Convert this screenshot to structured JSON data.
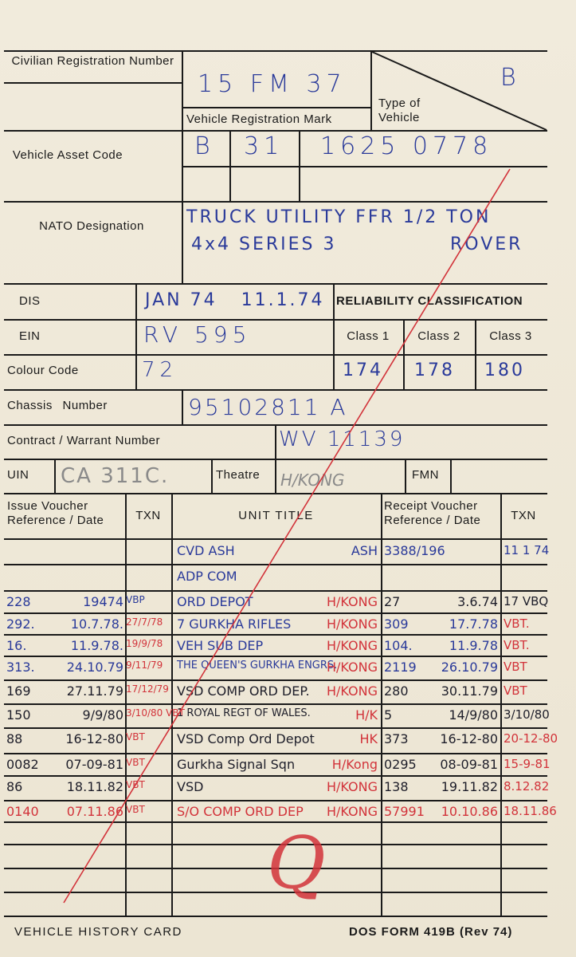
{
  "labels": {
    "civilian_registration_number": "Civilian Registration Number",
    "vehicle_registration_mark": "Vehicle Registration Mark",
    "type_of_vehicle": "Type of Vehicle",
    "vehicle_asset_code": "Vehicle Asset Code",
    "nato_designation": "NATO Designation",
    "dis": "DIS",
    "ein": "EIN",
    "colour_code": "Colour Code",
    "reliability_classification": "RELIABILITY CLASSIFICATION",
    "class_1": "Class 1",
    "class_2": "Class 2",
    "class_3": "Class 3",
    "chassis_number": "Chassis Number",
    "contract_warrant_number": "Contract / Warrant Number",
    "uin": "UIN",
    "theatre": "Theatre",
    "fmn": "FMN",
    "issue_voucher": "Issue Voucher Reference / Date",
    "txn": "TXN",
    "unit_title": "UNIT TITLE",
    "receipt_voucher": "Receipt Voucher Reference / Date",
    "txn_2": "TXN"
  },
  "values": {
    "vehicle_registration_mark": "15 FM 37",
    "type_of_vehicle": "B",
    "asset_code_1": "B",
    "asset_code_2": "31",
    "asset_code_3": "1625 0778",
    "nato_line_1": "TRUCK UTILITY FFR 1/2 TON",
    "nato_line_2": "4x4 SERIES 3",
    "nato_line_2b": "ROVER",
    "dis": "JAN 74   11.1.74",
    "ein": "RV 595",
    "colour_code": "72",
    "class_1": "174",
    "class_2": "178",
    "class_3": "180",
    "chassis_number": "95102811 A",
    "contract_warrant_number": "WV 11139",
    "uin": "CA 311C.",
    "theatre": "H/KONG",
    "fmn": ""
  },
  "history_rows": [
    {
      "iv_ref": {
        "t": "",
        "ink": "blue"
      },
      "iv_date": {
        "t": "",
        "ink": "blue"
      },
      "txn": {
        "t": "",
        "ink": "blue"
      },
      "unit": {
        "t": "CVD ASH",
        "ink": "blue"
      },
      "loc": {
        "t": "ASH",
        "ink": "blue"
      },
      "rv_ref": {
        "t": "3388/196",
        "ink": "blue"
      },
      "rv_date": {
        "t": "",
        "ink": "blue"
      },
      "txn2": {
        "t": "11 1 74",
        "ink": "blue"
      }
    },
    {
      "iv_ref": {
        "t": "",
        "ink": "blue"
      },
      "iv_date": {
        "t": "",
        "ink": "blue"
      },
      "txn": {
        "t": "",
        "ink": "blue"
      },
      "unit": {
        "t": "ADP COM",
        "ink": "blue"
      },
      "loc": {
        "t": "",
        "ink": "blue"
      },
      "rv_ref": {
        "t": "",
        "ink": "blue"
      },
      "rv_date": {
        "t": "",
        "ink": "blue"
      },
      "txn2": {
        "t": "",
        "ink": "blue"
      }
    },
    {
      "iv_ref": {
        "t": "228",
        "ink": "blue"
      },
      "iv_date": {
        "t": "19474",
        "ink": "blue"
      },
      "txn": {
        "t": "VBP",
        "ink": "blue"
      },
      "unit": {
        "t": "ORD DEPOT",
        "ink": "blue"
      },
      "loc": {
        "t": "H/KONG",
        "ink": "red"
      },
      "rv_ref": {
        "t": "27",
        "ink": "black"
      },
      "rv_date": {
        "t": "3.6.74",
        "ink": "black"
      },
      "txn2": {
        "t": "17 VBQ",
        "ink": "black"
      }
    },
    {
      "iv_ref": {
        "t": "292.",
        "ink": "blue"
      },
      "iv_date": {
        "t": "10.7.78.",
        "ink": "blue"
      },
      "txn": {
        "t": "27/7/78",
        "ink": "red"
      },
      "unit": {
        "t": "7 GURKHA RIFLES",
        "ink": "blue"
      },
      "loc": {
        "t": "H/KONG",
        "ink": "red"
      },
      "rv_ref": {
        "t": "309",
        "ink": "blue"
      },
      "rv_date": {
        "t": "17.7.78",
        "ink": "blue"
      },
      "txn2": {
        "t": "VBT.",
        "ink": "red"
      }
    },
    {
      "iv_ref": {
        "t": "16.",
        "ink": "blue"
      },
      "iv_date": {
        "t": "11.9.78.",
        "ink": "blue"
      },
      "txn": {
        "t": "19/9/78",
        "ink": "red"
      },
      "unit": {
        "t": "VEH SUB DEP",
        "ink": "blue"
      },
      "loc": {
        "t": "H/KONG",
        "ink": "red"
      },
      "rv_ref": {
        "t": "104.",
        "ink": "blue"
      },
      "rv_date": {
        "t": "11.9.78",
        "ink": "blue"
      },
      "txn2": {
        "t": "VBT.",
        "ink": "red"
      }
    },
    {
      "iv_ref": {
        "t": "313.",
        "ink": "blue"
      },
      "iv_date": {
        "t": "24.10.79",
        "ink": "blue"
      },
      "txn": {
        "t": "9/11/79",
        "ink": "red"
      },
      "unit": {
        "t": "THE QUEEN'S GURKHA ENGRS.",
        "ink": "blue"
      },
      "loc": {
        "t": "H/KONG",
        "ink": "red"
      },
      "rv_ref": {
        "t": "2119",
        "ink": "blue"
      },
      "rv_date": {
        "t": "26.10.79",
        "ink": "blue"
      },
      "txn2": {
        "t": "VBT",
        "ink": "red"
      }
    },
    {
      "iv_ref": {
        "t": "169",
        "ink": "black"
      },
      "iv_date": {
        "t": "27.11.79",
        "ink": "black"
      },
      "txn": {
        "t": "17/12/79",
        "ink": "red"
      },
      "unit": {
        "t": "VSD COMP ORD DEP.",
        "ink": "black"
      },
      "loc": {
        "t": "H/KONG",
        "ink": "red"
      },
      "rv_ref": {
        "t": "280",
        "ink": "black"
      },
      "rv_date": {
        "t": "30.11.79",
        "ink": "black"
      },
      "txn2": {
        "t": "VBT",
        "ink": "red"
      }
    },
    {
      "iv_ref": {
        "t": "150",
        "ink": "black"
      },
      "iv_date": {
        "t": "9/9/80",
        "ink": "black"
      },
      "txn": {
        "t": "3/10/80 VBT",
        "ink": "red"
      },
      "unit": {
        "t": "1 ROYAL REGT OF WALES.",
        "ink": "black"
      },
      "loc": {
        "t": "H/K",
        "ink": "red"
      },
      "rv_ref": {
        "t": "5",
        "ink": "black"
      },
      "rv_date": {
        "t": "14/9/80",
        "ink": "black"
      },
      "txn2": {
        "t": "3/10/80",
        "ink": "black"
      }
    },
    {
      "iv_ref": {
        "t": "88",
        "ink": "black"
      },
      "iv_date": {
        "t": "16-12-80",
        "ink": "black"
      },
      "txn": {
        "t": "VBT",
        "ink": "red"
      },
      "unit": {
        "t": "VSD Comp Ord Depot",
        "ink": "black"
      },
      "loc": {
        "t": "HK",
        "ink": "red"
      },
      "rv_ref": {
        "t": "373",
        "ink": "black"
      },
      "rv_date": {
        "t": "16-12-80",
        "ink": "black"
      },
      "txn2": {
        "t": "20-12-80",
        "ink": "red"
      }
    },
    {
      "iv_ref": {
        "t": "0082",
        "ink": "black"
      },
      "iv_date": {
        "t": "07-09-81",
        "ink": "black"
      },
      "txn": {
        "t": "VBT",
        "ink": "red"
      },
      "unit": {
        "t": "Gurkha Signal Sqn",
        "ink": "black"
      },
      "loc": {
        "t": "H/Kong",
        "ink": "red"
      },
      "rv_ref": {
        "t": "0295",
        "ink": "black"
      },
      "rv_date": {
        "t": "08-09-81",
        "ink": "black"
      },
      "txn2": {
        "t": "15-9-81",
        "ink": "red"
      }
    },
    {
      "iv_ref": {
        "t": "86",
        "ink": "black"
      },
      "iv_date": {
        "t": "18.11.82",
        "ink": "black"
      },
      "txn": {
        "t": "VBT",
        "ink": "red"
      },
      "unit": {
        "t": "VSD",
        "ink": "black"
      },
      "loc": {
        "t": "H/KONG",
        "ink": "red"
      },
      "rv_ref": {
        "t": "138",
        "ink": "black"
      },
      "rv_date": {
        "t": "19.11.82",
        "ink": "black"
      },
      "txn2": {
        "t": "8.12.82",
        "ink": "red"
      }
    },
    {
      "iv_ref": {
        "t": "0140",
        "ink": "red"
      },
      "iv_date": {
        "t": "07.11.86",
        "ink": "red"
      },
      "txn": {
        "t": "VBT",
        "ink": "red"
      },
      "unit": {
        "t": "S/O COMP ORD DEP",
        "ink": "red"
      },
      "loc": {
        "t": "H/KONG",
        "ink": "red"
      },
      "rv_ref": {
        "t": "57991",
        "ink": "red"
      },
      "rv_date": {
        "t": "10.10.86",
        "ink": "red"
      },
      "txn2": {
        "t": "18.11.86",
        "ink": "red"
      }
    }
  ],
  "empty_rows": 4,
  "footer": {
    "left": "VEHICLE HISTORY CARD",
    "right": "DOS FORM 419B (Rev 74)"
  },
  "signature_mark": "Q",
  "colors": {
    "card": "#efe9da",
    "blue_ink": "#2a3a9a",
    "red_ink": "#d2333a",
    "print": "#1a1a1a"
  }
}
